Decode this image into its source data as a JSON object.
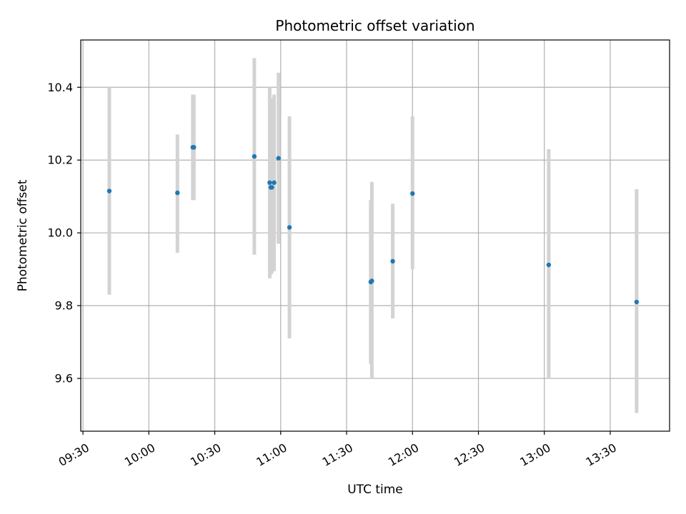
{
  "chart_data": {
    "type": "scatter",
    "title": "Photometric offset variation",
    "xlabel": "UTC time",
    "ylabel": "Photometric offset",
    "x_ticks": [
      "09:30",
      "10:00",
      "10:30",
      "11:00",
      "11:30",
      "12:00",
      "12:30",
      "13:00",
      "13:30"
    ],
    "y_ticks": [
      "9.6",
      "9.8",
      "10.0",
      "10.2",
      "10.4"
    ],
    "xlim": [
      "09:29",
      "13:57"
    ],
    "ylim": [
      9.455,
      10.53
    ],
    "grid": true,
    "colors": {
      "point": "#1f77b4",
      "errorbar": "#d3d3d3",
      "grid": "#b0b0b0"
    },
    "series": [
      {
        "points": [
          {
            "x": "09:42",
            "y": 10.115,
            "ylow": 9.83,
            "yhigh": 10.4
          },
          {
            "x": "10:13",
            "y": 10.11,
            "ylow": 9.945,
            "yhigh": 10.27
          },
          {
            "x": "10:20",
            "y": 10.235,
            "ylow": 10.09,
            "yhigh": 10.38
          },
          {
            "x": "10:20.5",
            "y": 10.235,
            "ylow": 10.09,
            "yhigh": 10.38
          },
          {
            "x": "10:48",
            "y": 10.21,
            "ylow": 9.94,
            "yhigh": 10.48
          },
          {
            "x": "10:55",
            "y": 10.138,
            "ylow": 9.875,
            "yhigh": 10.4
          },
          {
            "x": "10:55.5",
            "y": 10.125,
            "ylow": 9.885,
            "yhigh": 10.37
          },
          {
            "x": "10:56",
            "y": 10.125,
            "ylow": 9.89,
            "yhigh": 10.36
          },
          {
            "x": "10:57",
            "y": 10.138,
            "ylow": 9.895,
            "yhigh": 10.38
          },
          {
            "x": "10:59",
            "y": 10.205,
            "ylow": 9.97,
            "yhigh": 10.44
          },
          {
            "x": "11:04",
            "y": 10.015,
            "ylow": 9.71,
            "yhigh": 10.32
          },
          {
            "x": "11:41",
            "y": 9.865,
            "ylow": 9.64,
            "yhigh": 10.09
          },
          {
            "x": "11:41.5",
            "y": 9.868,
            "ylow": 9.6,
            "yhigh": 10.14
          },
          {
            "x": "11:51",
            "y": 9.922,
            "ylow": 9.765,
            "yhigh": 10.08
          },
          {
            "x": "12:00",
            "y": 10.108,
            "ylow": 9.9,
            "yhigh": 10.32
          },
          {
            "x": "13:02",
            "y": 9.912,
            "ylow": 9.6,
            "yhigh": 10.23
          },
          {
            "x": "13:42",
            "y": 9.81,
            "ylow": 9.505,
            "yhigh": 10.12
          }
        ]
      }
    ]
  }
}
